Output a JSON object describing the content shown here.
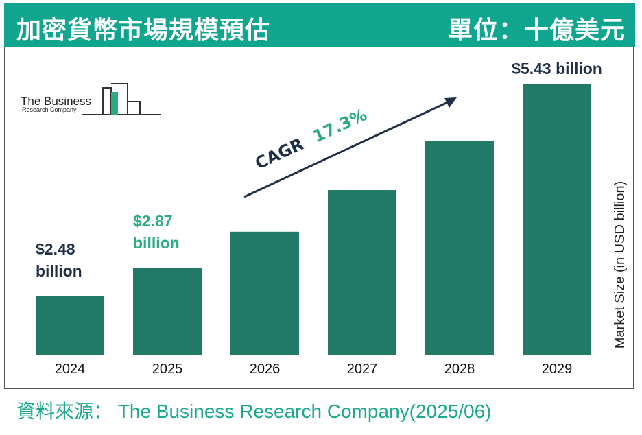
{
  "header": {
    "title": "加密貨幣市場規模預估",
    "unit": "單位：十億美元"
  },
  "logo": {
    "line1": "The Business",
    "line2": "Research Company"
  },
  "source": "資料來源： The Business Research Company(2025/06)",
  "colors": {
    "header_bg": "#10A58F",
    "bar": "#217A67",
    "accent_green": "#2BAA83",
    "dark_label": "#1F2F45"
  },
  "chart_data": {
    "type": "bar",
    "categories": [
      "2024",
      "2025",
      "2026",
      "2027",
      "2028",
      "2029"
    ],
    "values": [
      2.48,
      2.87,
      3.37,
      3.95,
      4.63,
      5.43
    ],
    "data_labels": [
      {
        "lines": [
          "$2.48",
          "billion"
        ],
        "color": "#1F2F45"
      },
      {
        "lines": [
          "$2.87",
          "billion"
        ],
        "color": "#2BAA83"
      },
      null,
      null,
      null,
      {
        "lines": [
          "$5.43 billion"
        ],
        "color": "#1F2F45"
      }
    ],
    "ylabel": "Market Size (in USD billion)",
    "xlabel": "",
    "ylim": [
      1.65,
      5.63
    ],
    "grid": false,
    "annotation": {
      "prefix": "CAGR",
      "value": "17.3%"
    }
  }
}
